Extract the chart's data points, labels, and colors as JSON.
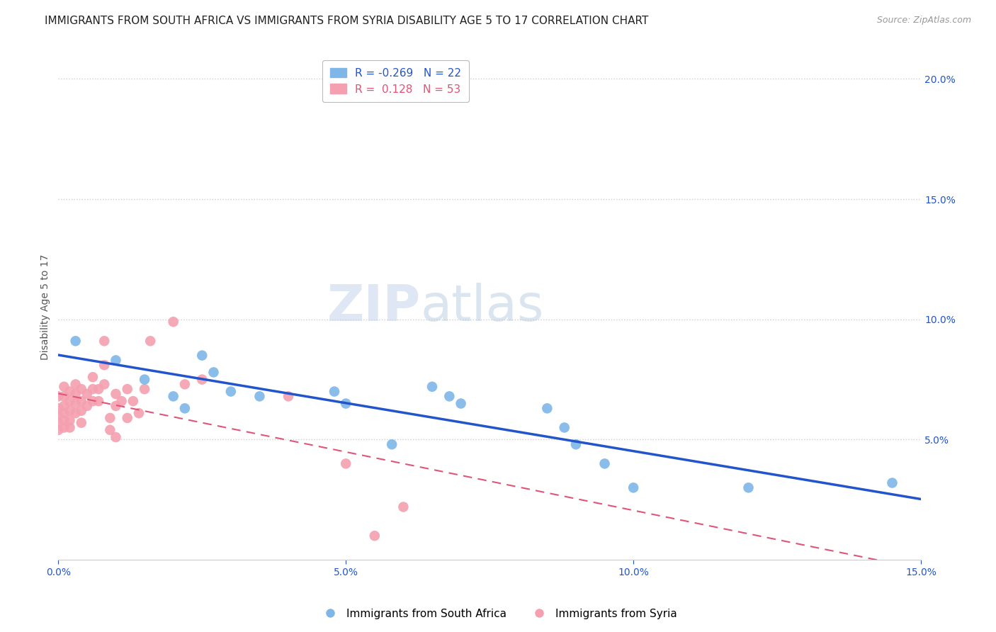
{
  "title": "IMMIGRANTS FROM SOUTH AFRICA VS IMMIGRANTS FROM SYRIA DISABILITY AGE 5 TO 17 CORRELATION CHART",
  "source": "Source: ZipAtlas.com",
  "ylabel": "Disability Age 5 to 17",
  "xlim": [
    0.0,
    0.15
  ],
  "ylim": [
    0.0,
    0.21
  ],
  "xticks": [
    0.0,
    0.05,
    0.1,
    0.15
  ],
  "xticklabels": [
    "0.0%",
    "5.0%",
    "10.0%",
    "15.0%"
  ],
  "yticks_right": [
    0.05,
    0.1,
    0.15,
    0.2
  ],
  "yticklabels_right": [
    "5.0%",
    "10.0%",
    "15.0%",
    "20.0%"
  ],
  "watermark_zip": "ZIP",
  "watermark_atlas": "atlas",
  "blue_R": -0.269,
  "blue_N": 22,
  "pink_R": 0.128,
  "pink_N": 53,
  "blue_color": "#7EB6E8",
  "pink_color": "#F4A0B0",
  "blue_line_color": "#2255CC",
  "pink_line_color": "#E05577",
  "blue_scatter": [
    [
      0.003,
      0.091
    ],
    [
      0.01,
      0.083
    ],
    [
      0.015,
      0.075
    ],
    [
      0.02,
      0.068
    ],
    [
      0.022,
      0.063
    ],
    [
      0.025,
      0.085
    ],
    [
      0.027,
      0.078
    ],
    [
      0.03,
      0.07
    ],
    [
      0.035,
      0.068
    ],
    [
      0.048,
      0.07
    ],
    [
      0.05,
      0.065
    ],
    [
      0.058,
      0.048
    ],
    [
      0.065,
      0.072
    ],
    [
      0.068,
      0.068
    ],
    [
      0.07,
      0.065
    ],
    [
      0.085,
      0.063
    ],
    [
      0.088,
      0.055
    ],
    [
      0.09,
      0.048
    ],
    [
      0.095,
      0.04
    ],
    [
      0.1,
      0.03
    ],
    [
      0.12,
      0.03
    ],
    [
      0.145,
      0.032
    ]
  ],
  "pink_scatter": [
    [
      0.0,
      0.068
    ],
    [
      0.0,
      0.063
    ],
    [
      0.0,
      0.06
    ],
    [
      0.0,
      0.057
    ],
    [
      0.0,
      0.054
    ],
    [
      0.001,
      0.072
    ],
    [
      0.001,
      0.068
    ],
    [
      0.001,
      0.064
    ],
    [
      0.001,
      0.061
    ],
    [
      0.001,
      0.058
    ],
    [
      0.001,
      0.055
    ],
    [
      0.002,
      0.07
    ],
    [
      0.002,
      0.066
    ],
    [
      0.002,
      0.062
    ],
    [
      0.002,
      0.058
    ],
    [
      0.002,
      0.055
    ],
    [
      0.003,
      0.073
    ],
    [
      0.003,
      0.069
    ],
    [
      0.003,
      0.065
    ],
    [
      0.003,
      0.061
    ],
    [
      0.004,
      0.071
    ],
    [
      0.004,
      0.066
    ],
    [
      0.004,
      0.062
    ],
    [
      0.004,
      0.057
    ],
    [
      0.005,
      0.069
    ],
    [
      0.005,
      0.064
    ],
    [
      0.006,
      0.076
    ],
    [
      0.006,
      0.071
    ],
    [
      0.006,
      0.066
    ],
    [
      0.007,
      0.071
    ],
    [
      0.007,
      0.066
    ],
    [
      0.008,
      0.091
    ],
    [
      0.008,
      0.081
    ],
    [
      0.008,
      0.073
    ],
    [
      0.009,
      0.059
    ],
    [
      0.009,
      0.054
    ],
    [
      0.01,
      0.069
    ],
    [
      0.01,
      0.064
    ],
    [
      0.01,
      0.051
    ],
    [
      0.011,
      0.066
    ],
    [
      0.012,
      0.071
    ],
    [
      0.012,
      0.059
    ],
    [
      0.013,
      0.066
    ],
    [
      0.014,
      0.061
    ],
    [
      0.015,
      0.071
    ],
    [
      0.016,
      0.091
    ],
    [
      0.02,
      0.099
    ],
    [
      0.022,
      0.073
    ],
    [
      0.025,
      0.075
    ],
    [
      0.04,
      0.068
    ],
    [
      0.05,
      0.04
    ],
    [
      0.055,
      0.01
    ],
    [
      0.06,
      0.022
    ]
  ],
  "background_color": "#FFFFFF",
  "grid_color": "#CCCCCC",
  "title_fontsize": 11,
  "axis_label_fontsize": 10,
  "tick_fontsize": 10,
  "legend_fontsize": 11
}
